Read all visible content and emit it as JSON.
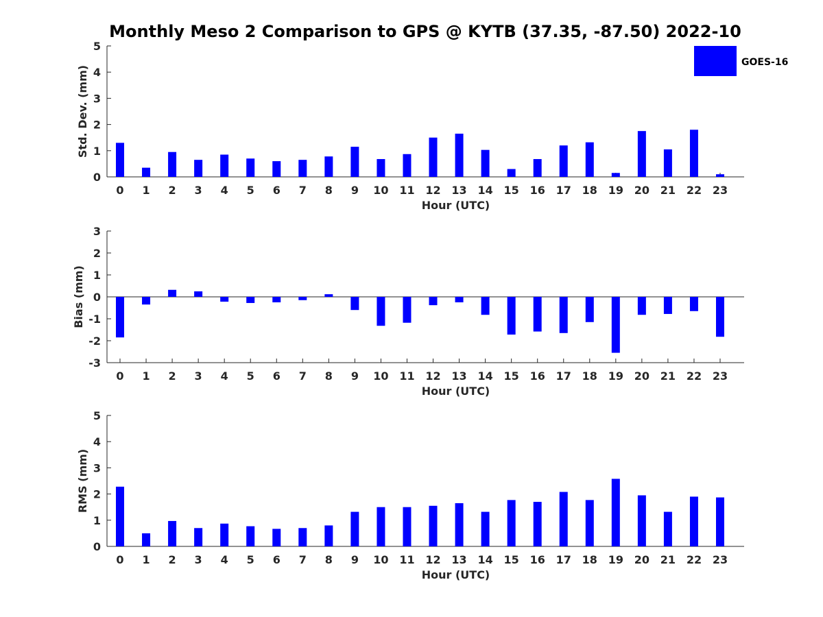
{
  "title": "Monthly Meso 2 Comparison to GPS @ KYTB (37.35, -87.50) 2022-10",
  "legend": {
    "label": "GOES-16",
    "color": "#0000ff"
  },
  "chart_data": [
    {
      "type": "bar",
      "id": "std",
      "title": "",
      "xlabel": "Hour (UTC)",
      "ylabel": "Std. Dev. (mm)",
      "ylim": [
        0,
        5
      ],
      "yticks": [
        "0",
        "1",
        "2",
        "3",
        "4",
        "5"
      ],
      "categories": [
        "0",
        "1",
        "2",
        "3",
        "4",
        "5",
        "6",
        "7",
        "8",
        "9",
        "10",
        "11",
        "12",
        "13",
        "14",
        "15",
        "16",
        "17",
        "18",
        "19",
        "20",
        "21",
        "22",
        "23"
      ],
      "series": [
        {
          "name": "GOES-16",
          "color": "#0000ff",
          "values": [
            1.3,
            0.35,
            0.95,
            0.65,
            0.85,
            0.7,
            0.6,
            0.65,
            0.78,
            1.15,
            0.68,
            0.87,
            1.5,
            1.65,
            1.03,
            0.3,
            0.68,
            1.2,
            1.32,
            0.15,
            1.75,
            1.05,
            1.8,
            0.1
          ]
        }
      ]
    },
    {
      "type": "bar",
      "id": "bias",
      "title": "",
      "xlabel": "Hour (UTC)",
      "ylabel": "Bias (mm)",
      "ylim": [
        -3,
        3
      ],
      "yticks": [
        "-3",
        "-2",
        "-1",
        "0",
        "1",
        "2",
        "3"
      ],
      "categories": [
        "0",
        "1",
        "2",
        "3",
        "4",
        "5",
        "6",
        "7",
        "8",
        "9",
        "10",
        "11",
        "12",
        "13",
        "14",
        "15",
        "16",
        "17",
        "18",
        "19",
        "20",
        "21",
        "22",
        "23"
      ],
      "series": [
        {
          "name": "GOES-16",
          "color": "#0000ff",
          "values": [
            -1.85,
            -0.35,
            0.32,
            0.25,
            -0.22,
            -0.28,
            -0.25,
            -0.15,
            0.12,
            -0.6,
            -1.32,
            -1.18,
            -0.38,
            -0.25,
            -0.82,
            -1.72,
            -1.58,
            -1.65,
            -1.15,
            -2.55,
            -0.82,
            -0.78,
            -0.65,
            -1.82
          ]
        }
      ]
    },
    {
      "type": "bar",
      "id": "rms",
      "title": "",
      "xlabel": "Hour (UTC)",
      "ylabel": "RMS (mm)",
      "ylim": [
        0,
        5
      ],
      "yticks": [
        "0",
        "1",
        "2",
        "3",
        "4",
        "5"
      ],
      "categories": [
        "0",
        "1",
        "2",
        "3",
        "4",
        "5",
        "6",
        "7",
        "8",
        "9",
        "10",
        "11",
        "12",
        "13",
        "14",
        "15",
        "16",
        "17",
        "18",
        "19",
        "20",
        "21",
        "22",
        "23"
      ],
      "series": [
        {
          "name": "GOES-16",
          "color": "#0000ff",
          "values": [
            2.28,
            0.5,
            0.97,
            0.7,
            0.87,
            0.77,
            0.67,
            0.7,
            0.8,
            1.32,
            1.5,
            1.5,
            1.55,
            1.65,
            1.32,
            1.77,
            1.7,
            2.08,
            1.77,
            2.58,
            1.95,
            1.32,
            1.9,
            1.87
          ]
        }
      ]
    }
  ]
}
